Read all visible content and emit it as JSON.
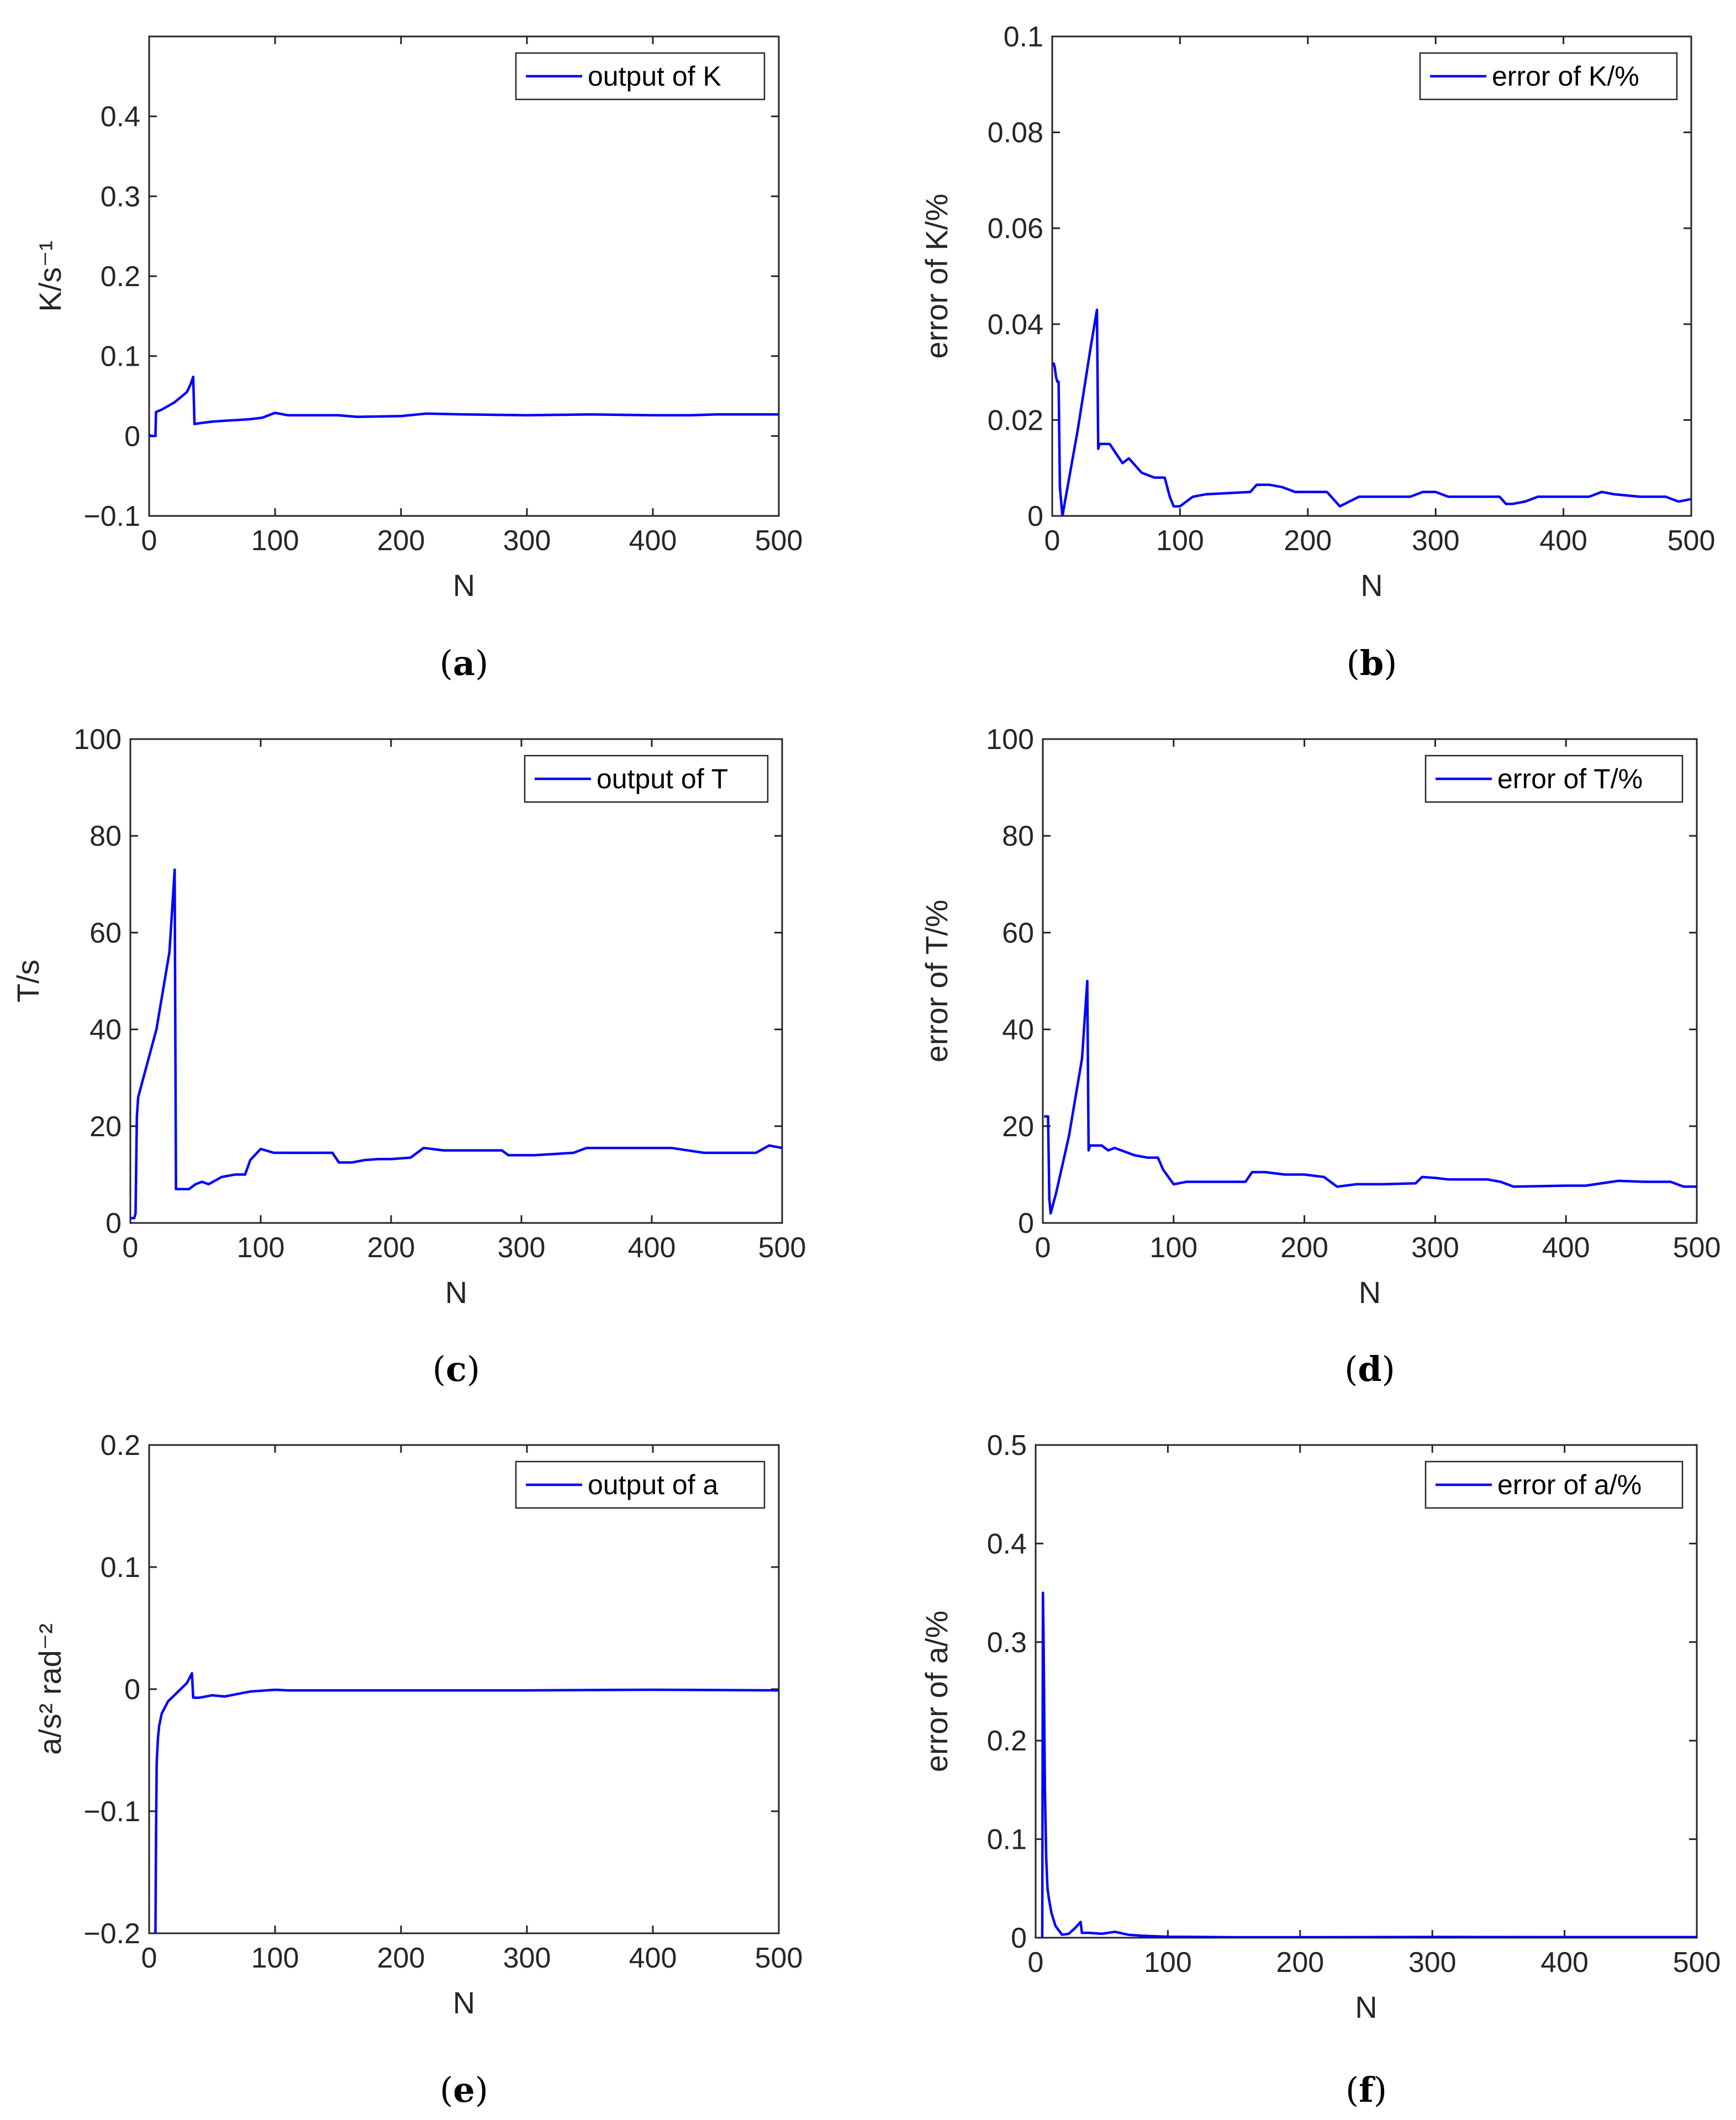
{
  "chart_data": [
    {
      "type": "line",
      "panel": "a",
      "caption": {
        "open": "(",
        "letter": "a",
        "close": ")"
      },
      "xlabel": "N",
      "ylabel": "K/s⁻¹",
      "xlim": [
        0,
        500
      ],
      "ylim": [
        -0.1,
        0.5
      ],
      "xticks": [
        0,
        100,
        200,
        300,
        400,
        500
      ],
      "xtick_labels": [
        "0",
        "100",
        "200",
        "300",
        "400",
        "500"
      ],
      "yticks": [
        -0.1,
        0,
        0.1,
        0.2,
        0.3,
        0.4
      ],
      "ytick_labels": [
        "−0.1",
        "0",
        "0.1",
        "0.2",
        "0.3",
        "0.4"
      ],
      "legend": "output of K",
      "legend_position": "top-right",
      "color": "#0000ff",
      "series": [
        {
          "name": "output of K",
          "x": [
            0,
            1,
            3,
            5,
            5.5,
            10,
            20,
            30,
            33,
            35,
            36,
            40,
            50,
            60,
            70,
            80,
            90,
            100,
            110,
            150,
            165,
            200,
            220,
            250,
            300,
            350,
            400,
            430,
            450,
            500
          ],
          "y": [
            0.002,
            0.0,
            0.0,
            0.0,
            0.03,
            0.033,
            0.042,
            0.055,
            0.065,
            0.074,
            0.015,
            0.016,
            0.018,
            0.019,
            0.02,
            0.021,
            0.023,
            0.029,
            0.026,
            0.026,
            0.024,
            0.025,
            0.028,
            0.027,
            0.026,
            0.027,
            0.026,
            0.026,
            0.027,
            0.027
          ]
        }
      ]
    },
    {
      "type": "line",
      "panel": "b",
      "caption": {
        "open": "(",
        "letter": "b",
        "close": ")"
      },
      "xlabel": "N",
      "ylabel": "error of K/%",
      "xlim": [
        0,
        500
      ],
      "ylim": [
        0,
        0.1
      ],
      "xticks": [
        0,
        100,
        200,
        300,
        400,
        500
      ],
      "xtick_labels": [
        "0",
        "100",
        "200",
        "300",
        "400",
        "500"
      ],
      "yticks": [
        0,
        0.02,
        0.04,
        0.06,
        0.08,
        0.1
      ],
      "ytick_labels": [
        "0",
        "0.02",
        "0.04",
        "0.06",
        "0.08",
        "0.1"
      ],
      "legend": "error of K/%",
      "legend_position": "top-right",
      "color": "#0000ff",
      "series": [
        {
          "name": "error of K/%",
          "x": [
            1,
            2,
            3,
            4,
            5,
            6,
            8,
            10,
            20,
            30,
            35,
            36,
            37,
            45,
            50,
            55,
            60,
            70,
            80,
            88,
            92,
            95,
            100,
            110,
            120,
            155,
            160,
            170,
            180,
            190,
            200,
            215,
            225,
            240,
            260,
            280,
            290,
            300,
            310,
            350,
            355,
            360,
            370,
            380,
            420,
            430,
            440,
            460,
            470,
            480,
            490,
            500
          ],
          "y": [
            0.032,
            0.031,
            0.029,
            0.028,
            0.028,
            0.006,
            0.0,
            0.003,
            0.018,
            0.035,
            0.043,
            0.014,
            0.015,
            0.015,
            0.013,
            0.011,
            0.012,
            0.009,
            0.008,
            0.008,
            0.004,
            0.002,
            0.002,
            0.004,
            0.0045,
            0.005,
            0.0065,
            0.0065,
            0.006,
            0.005,
            0.005,
            0.005,
            0.002,
            0.004,
            0.004,
            0.004,
            0.005,
            0.005,
            0.004,
            0.004,
            0.0025,
            0.0025,
            0.003,
            0.004,
            0.004,
            0.005,
            0.0045,
            0.004,
            0.004,
            0.004,
            0.003,
            0.0035
          ]
        }
      ]
    },
    {
      "type": "line",
      "panel": "c",
      "caption": {
        "open": "(",
        "letter": "c",
        "close": ")"
      },
      "xlabel": "N",
      "ylabel": "T/s",
      "xlim": [
        0,
        500
      ],
      "ylim": [
        0,
        100
      ],
      "xticks": [
        0,
        100,
        200,
        300,
        400,
        500
      ],
      "xtick_labels": [
        "0",
        "100",
        "200",
        "300",
        "400",
        "500"
      ],
      "yticks": [
        0,
        20,
        40,
        60,
        80,
        100
      ],
      "ytick_labels": [
        "0",
        "20",
        "40",
        "60",
        "80",
        "100"
      ],
      "legend": "output of T",
      "legend_position": "top-right",
      "color": "#0000ff",
      "series": [
        {
          "name": "output of T",
          "x": [
            0,
            1,
            3,
            4,
            5,
            6,
            10,
            20,
            30,
            34,
            35,
            36,
            40,
            45,
            50,
            55,
            60,
            70,
            80,
            88,
            92,
            100,
            110,
            120,
            130,
            155,
            160,
            170,
            180,
            190,
            200,
            215,
            225,
            240,
            260,
            285,
            290,
            300,
            310,
            340,
            350,
            360,
            400,
            415,
            440,
            460,
            480,
            490,
            500
          ],
          "y": [
            1,
            1,
            1,
            2,
            22,
            26,
            30,
            40,
            56,
            73,
            7,
            7,
            7,
            7,
            8,
            8.5,
            8,
            9.5,
            10,
            10,
            13,
            15.3,
            14.5,
            14.5,
            14.5,
            14.5,
            12.5,
            12.5,
            13,
            13.2,
            13.2,
            13.5,
            15.5,
            15,
            15,
            15,
            14,
            14,
            14,
            14.5,
            15.5,
            15.5,
            15.5,
            15.5,
            14.5,
            14.5,
            14.5,
            16,
            15.5
          ]
        }
      ]
    },
    {
      "type": "line",
      "panel": "d",
      "caption": {
        "open": "(",
        "letter": "d",
        "close": ")"
      },
      "xlabel": "N",
      "ylabel": "error of T/%",
      "xlim": [
        0,
        500
      ],
      "ylim": [
        0,
        100
      ],
      "xticks": [
        0,
        100,
        200,
        300,
        400,
        500
      ],
      "xtick_labels": [
        "0",
        "100",
        "200",
        "300",
        "400",
        "500"
      ],
      "yticks": [
        0,
        20,
        40,
        60,
        80,
        100
      ],
      "ytick_labels": [
        "0",
        "20",
        "40",
        "60",
        "80",
        "100"
      ],
      "legend": "error of T/%",
      "legend_position": "top-right",
      "color": "#0000ff",
      "series": [
        {
          "name": "error of T/%",
          "x": [
            1,
            3,
            4,
            5,
            6,
            10,
            20,
            30,
            34,
            35,
            36,
            45,
            50,
            55,
            60,
            70,
            80,
            88,
            92,
            100,
            110,
            120,
            155,
            160,
            170,
            185,
            200,
            215,
            225,
            240,
            260,
            285,
            290,
            300,
            310,
            340,
            350,
            360,
            400,
            415,
            440,
            460,
            480,
            490,
            500
          ],
          "y": [
            22,
            22,
            22,
            5,
            2,
            6,
            18,
            34,
            50,
            15,
            16,
            16,
            15,
            15.5,
            15,
            14,
            13.5,
            13.5,
            11,
            8,
            8.5,
            8.5,
            8.5,
            10.5,
            10.5,
            10,
            10,
            9.5,
            7.5,
            8,
            8,
            8.2,
            9.5,
            9.3,
            9,
            9,
            8.5,
            7.5,
            7.7,
            7.7,
            8.7,
            8.5,
            8.5,
            7.5,
            7.5
          ]
        }
      ]
    },
    {
      "type": "line",
      "panel": "e",
      "caption": {
        "open": "(",
        "letter": "e",
        "close": ")"
      },
      "xlabel": "N",
      "ylabel": "a/s² rad⁻²",
      "xlim": [
        0,
        500
      ],
      "ylim": [
        -0.2,
        0.2
      ],
      "xticks": [
        0,
        100,
        200,
        300,
        400,
        500
      ],
      "xtick_labels": [
        "0",
        "100",
        "200",
        "300",
        "400",
        "500"
      ],
      "yticks": [
        -0.2,
        -0.1,
        0,
        0.1,
        0.2
      ],
      "ytick_labels": [
        "−0.2",
        "−0.1",
        "0",
        "0.1",
        "0.2"
      ],
      "legend": "output of a",
      "legend_position": "top-right",
      "color": "#0000ff",
      "series": [
        {
          "name": "output of a",
          "x": [
            5,
            5.5,
            6,
            7,
            8,
            10,
            15,
            20,
            25,
            30,
            34,
            35,
            40,
            50,
            60,
            70,
            80,
            100,
            110,
            150,
            200,
            300,
            400,
            500
          ],
          "y": [
            -0.2,
            -0.12,
            -0.06,
            -0.04,
            -0.03,
            -0.02,
            -0.01,
            -0.005,
            0.0,
            0.005,
            0.013,
            -0.007,
            -0.007,
            -0.005,
            -0.006,
            -0.004,
            -0.002,
            -0.0005,
            -0.001,
            -0.001,
            -0.001,
            -0.001,
            -0.0005,
            -0.001
          ]
        }
      ]
    },
    {
      "type": "line",
      "panel": "f",
      "caption": {
        "open": "(",
        "letter": "f",
        "close": ")"
      },
      "xlabel": "N",
      "ylabel": "error of a/%",
      "xlim": [
        0,
        500
      ],
      "ylim": [
        0,
        0.5
      ],
      "xticks": [
        0,
        100,
        200,
        300,
        400,
        500
      ],
      "xtick_labels": [
        "0",
        "100",
        "200",
        "300",
        "400",
        "500"
      ],
      "yticks": [
        0,
        0.1,
        0.2,
        0.3,
        0.4,
        0.5
      ],
      "ytick_labels": [
        "0",
        "0.1",
        "0.2",
        "0.3",
        "0.4",
        "0.5"
      ],
      "legend": "error of a/%",
      "legend_position": "top-right",
      "color": "#0000ff",
      "series": [
        {
          "name": "error of a/%",
          "x": [
            5,
            5.5,
            6,
            7,
            8,
            9,
            10,
            12,
            15,
            20,
            25,
            30,
            34,
            35,
            40,
            50,
            60,
            70,
            80,
            100,
            150,
            200,
            300,
            400,
            500
          ],
          "y": [
            0.0,
            0.35,
            0.3,
            0.15,
            0.08,
            0.05,
            0.04,
            0.025,
            0.012,
            0.003,
            0.004,
            0.01,
            0.016,
            0.005,
            0.005,
            0.004,
            0.006,
            0.003,
            0.002,
            0.001,
            0.0005,
            0.0005,
            0.0008,
            0.0006,
            0.0006
          ]
        }
      ]
    }
  ]
}
